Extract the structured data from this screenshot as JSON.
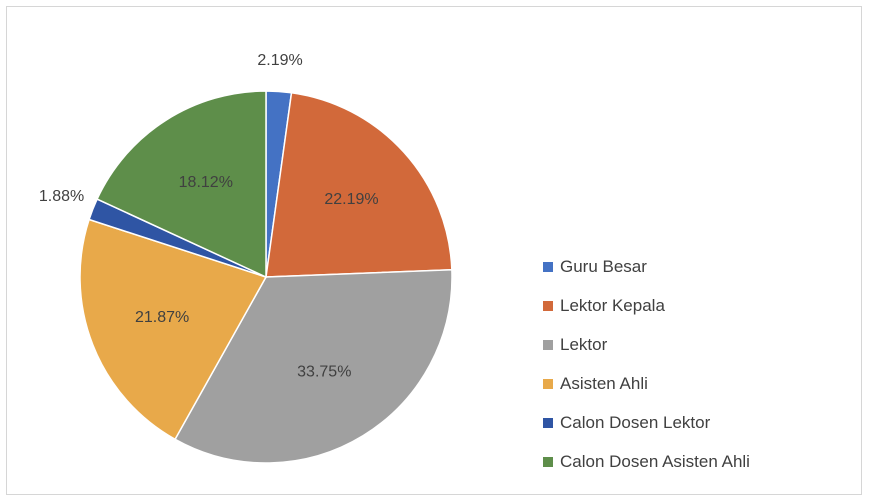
{
  "chart_data": {
    "type": "pie",
    "title": "",
    "slices": [
      {
        "label": "Guru Besar",
        "value": 2.19,
        "display": "2.19%",
        "color": "#4472C4"
      },
      {
        "label": "Lektor Kepala",
        "value": 22.19,
        "display": "22.19%",
        "color": "#D2693A"
      },
      {
        "label": "Lektor",
        "value": 33.75,
        "display": "33.75%",
        "color": "#A0A0A0"
      },
      {
        "label": "Asisten Ahli",
        "value": 21.87,
        "display": "21.87%",
        "color": "#E8A94A"
      },
      {
        "label": "Calon Dosen Lektor",
        "value": 1.88,
        "display": "1.88%",
        "color": "#2F55A4"
      },
      {
        "label": "Calon Dosen Asisten Ahli",
        "value": 18.12,
        "display": "18.12%",
        "color": "#5E8E4A"
      }
    ],
    "legend_position": "right",
    "start_angle": "top",
    "direction": "clockwise"
  }
}
